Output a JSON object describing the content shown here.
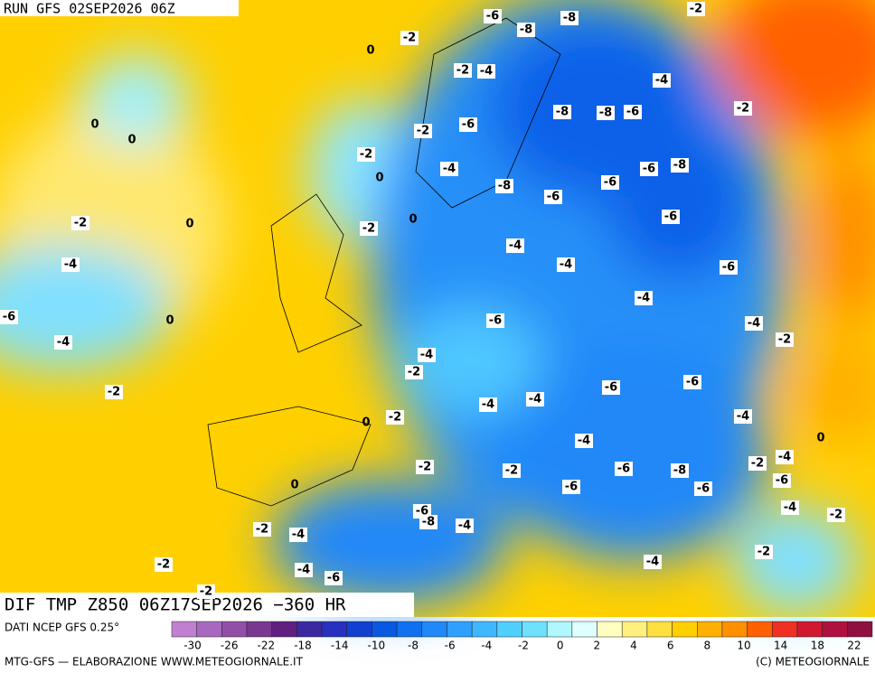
{
  "header": {
    "run": "RUN GFS 02SEP2026 06Z"
  },
  "map": {
    "contour_labels": [
      -6,
      -8,
      -2,
      -8,
      -2,
      0,
      -2,
      -4,
      -4,
      0,
      0,
      -8,
      -8,
      -6,
      -2,
      -2,
      -6,
      -2,
      0,
      -4,
      -6,
      -8,
      -6,
      -8,
      -6,
      -2,
      0,
      -6,
      0,
      -2,
      -4,
      -4,
      -4,
      -6,
      -4,
      -6,
      0,
      -6,
      -4,
      -4,
      -2,
      -4,
      -2,
      -2,
      -6,
      -4,
      -4,
      -6,
      0,
      -2,
      -4,
      0,
      -4,
      -2,
      -2,
      -6,
      -8,
      -2,
      -4,
      -6,
      -6,
      -6,
      0,
      -6,
      -8,
      -4,
      -4,
      -2,
      -2,
      -4,
      -2,
      -2,
      -4,
      -6,
      -4,
      -2
    ]
  },
  "footer": {
    "product": "DIF TMP Z850 06Z17SEP2026 −360 HR",
    "source": "DATI NCEP GFS 0.25°",
    "credit": "MTG-GFS — ELABORAZIONE WWW.METEOGIORNALE.IT",
    "copyright": "(C) METEOGIORNALE"
  },
  "colorbar": {
    "colors": [
      "#c080d0",
      "#a868c0",
      "#9050a8",
      "#783890",
      "#602080",
      "#3c28a0",
      "#2830c0",
      "#1040d0",
      "#0858e0",
      "#1070f0",
      "#2088f8",
      "#30a0ff",
      "#40b8ff",
      "#50d0ff",
      "#70e0ff",
      "#b0f8ff",
      "#e0ffff",
      "#ffffc0",
      "#fff080",
      "#ffe040",
      "#ffd000",
      "#ffb000",
      "#ff9000",
      "#ff6000",
      "#f03020",
      "#d01830",
      "#b01040",
      "#901040"
    ],
    "labels": [
      -30,
      -26,
      -22,
      -18,
      -14,
      -10,
      -8,
      -6,
      -4,
      -2,
      0,
      2,
      4,
      6,
      8,
      10,
      14,
      18,
      22
    ]
  }
}
